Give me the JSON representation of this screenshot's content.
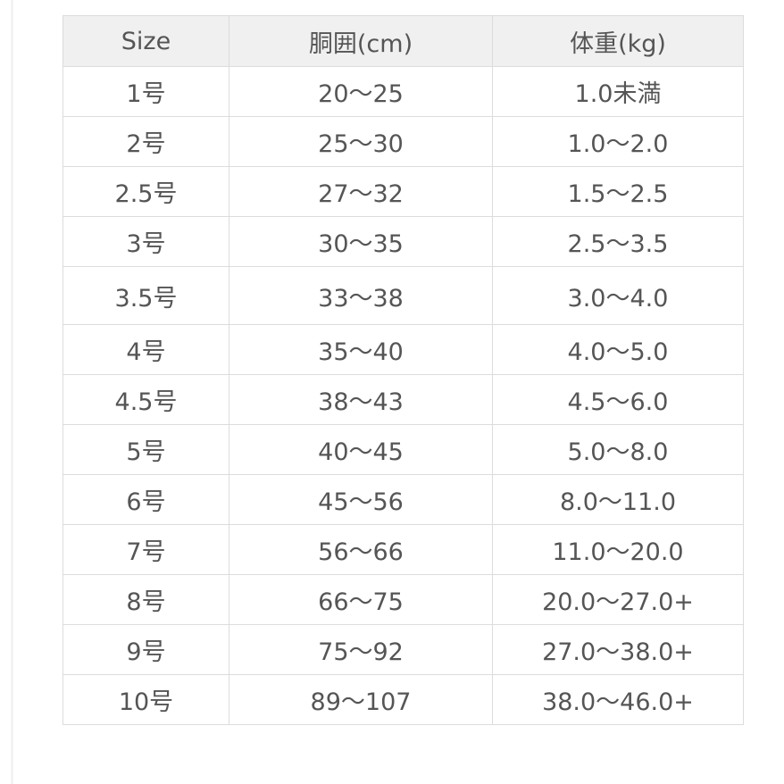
{
  "table": {
    "headers": [
      "Size",
      "胴囲(cm)",
      "体重(kg)"
    ],
    "rows": [
      [
        "1号",
        "20〜25",
        "1.0未満"
      ],
      [
        "2号",
        "25〜30",
        "1.0〜2.0"
      ],
      [
        "2.5号",
        "27〜32",
        "1.5〜2.5"
      ],
      [
        "3号",
        "30〜35",
        "2.5〜3.5"
      ],
      [
        "3.5号",
        "33〜38",
        "3.0〜4.0"
      ],
      [
        "4号",
        "35〜40",
        "4.0〜5.0"
      ],
      [
        "4.5号",
        "38〜43",
        "4.5〜6.0"
      ],
      [
        "5号",
        "40〜45",
        "5.0〜8.0"
      ],
      [
        "6号",
        "45〜56",
        "8.0〜11.0"
      ],
      [
        "7号",
        "56〜66",
        "11.0〜20.0"
      ],
      [
        "8号",
        "66〜75",
        "20.0〜27.0+"
      ],
      [
        "9号",
        "75〜92",
        "27.0〜38.0+"
      ],
      [
        "10号",
        "89〜107",
        "38.0〜46.0+"
      ]
    ]
  }
}
